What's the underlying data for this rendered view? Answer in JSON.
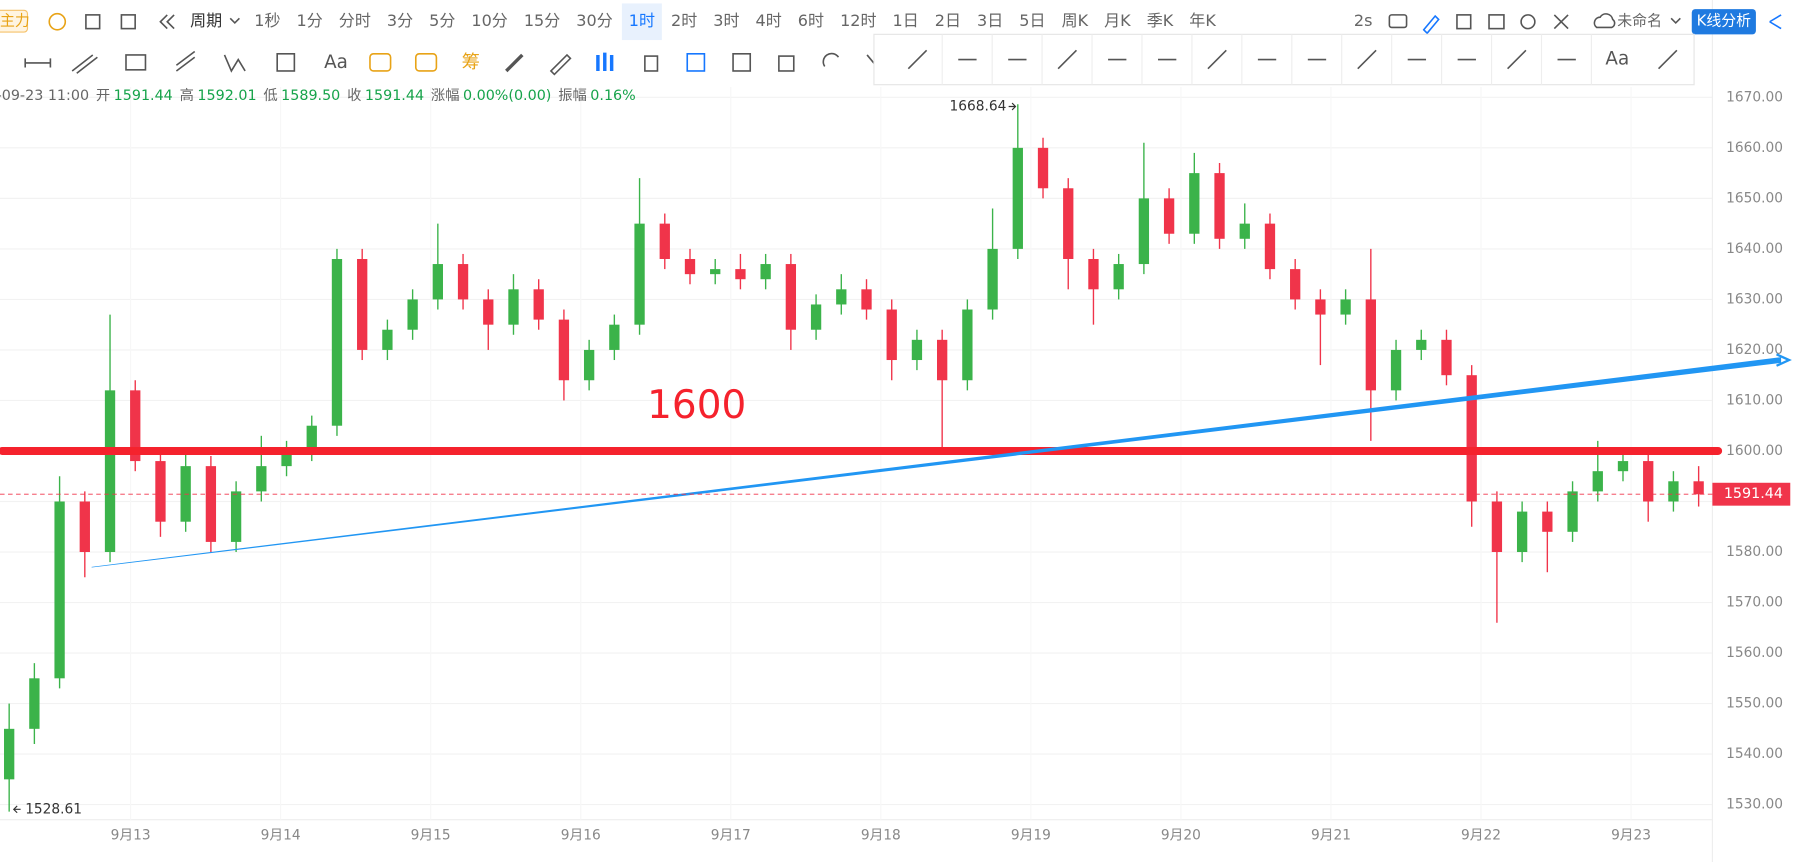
{
  "toolbar": {
    "left_tag": "主力",
    "period": "周期",
    "periods": [
      "1秒",
      "1分",
      "分时",
      "3分",
      "5分",
      "10分",
      "15分",
      "30分",
      "1时",
      "2时",
      "3时",
      "4时",
      "6时",
      "12时",
      "1日",
      "2日",
      "3日",
      "5日",
      "周K",
      "月K",
      "季K",
      "年K"
    ],
    "selected_period": "1时",
    "refresh": "2s",
    "layout_name": "未命名",
    "analysis_button": "K线分析",
    "row2_text": "Aa",
    "row2_chip": "筹",
    "draw_text": "Aa"
  },
  "info_bar": {
    "time": "-09-23 11:00",
    "open_label": "开",
    "open": "1591.44",
    "high_label": "高",
    "high": "1592.01",
    "low_label": "低",
    "low": "1589.50",
    "close_label": "收",
    "close": "1591.44",
    "change_label": "涨幅",
    "change": "0.00%(0.00)",
    "amplitude_label": "振幅",
    "amplitude": "0.16%"
  },
  "chart_data": {
    "type": "candlestick",
    "up_color": "#3bb34a",
    "down_color": "#f0344a",
    "x_labels": [
      "9月13",
      "9月14",
      "9月15",
      "9月16",
      "9月17",
      "9月18",
      "9月19",
      "9月20",
      "9月21",
      "9月22",
      "9月23"
    ],
    "ylim": [
      1520,
      1672
    ],
    "yticks": [
      {
        "value": 1530,
        "label": "1530.00"
      },
      {
        "value": 1540,
        "label": "1540.00"
      },
      {
        "value": 1550,
        "label": "1550.00"
      },
      {
        "value": 1560,
        "label": "1560.00"
      },
      {
        "value": 1570,
        "label": "1570.00"
      },
      {
        "value": 1580,
        "label": "1580.00"
      },
      {
        "value": 1590,
        "label": "1590.00"
      },
      {
        "value": 1600,
        "label": "1600.00"
      },
      {
        "value": 1610,
        "label": "1610.00"
      },
      {
        "value": 1620,
        "label": "1620.00"
      },
      {
        "value": 1630,
        "label": "1630.00"
      },
      {
        "value": 1640,
        "label": "1640.00"
      },
      {
        "value": 1650,
        "label": "1650.00"
      },
      {
        "value": 1660,
        "label": "1660.00"
      },
      {
        "value": 1670,
        "label": "1670.00"
      }
    ],
    "grid": true,
    "max_label": 1668.64,
    "min_label": 1528.61,
    "last_price": 1591.44,
    "horizontal_line": 1600,
    "horizontal_line_text": "1600",
    "horizontal_line_color": "#f5222d",
    "trend_line": {
      "start": 1577,
      "end": 1618,
      "color": "#2196f3"
    },
    "candles": [
      {
        "open": 1535,
        "high": 1550,
        "low": 1528.61,
        "close": 1545
      },
      {
        "open": 1545,
        "high": 1558,
        "low": 1542,
        "close": 1555
      },
      {
        "open": 1555,
        "high": 1595,
        "low": 1553,
        "close": 1590
      },
      {
        "open": 1590,
        "high": 1592,
        "low": 1575,
        "close": 1580
      },
      {
        "open": 1580,
        "high": 1627,
        "low": 1578,
        "close": 1612
      },
      {
        "open": 1612,
        "high": 1614,
        "low": 1596,
        "close": 1598
      },
      {
        "open": 1598,
        "high": 1600,
        "low": 1583,
        "close": 1586
      },
      {
        "open": 1586,
        "high": 1600,
        "low": 1584,
        "close": 1597
      },
      {
        "open": 1597,
        "high": 1599,
        "low": 1580,
        "close": 1582
      },
      {
        "open": 1582,
        "high": 1594,
        "low": 1580,
        "close": 1592
      },
      {
        "open": 1592,
        "high": 1603,
        "low": 1590,
        "close": 1597
      },
      {
        "open": 1597,
        "high": 1602,
        "low": 1595,
        "close": 1600
      },
      {
        "open": 1600,
        "high": 1607,
        "low": 1598,
        "close": 1605
      },
      {
        "open": 1605,
        "high": 1640,
        "low": 1603,
        "close": 1638
      },
      {
        "open": 1638,
        "high": 1640,
        "low": 1618,
        "close": 1620
      },
      {
        "open": 1620,
        "high": 1626,
        "low": 1618,
        "close": 1624
      },
      {
        "open": 1624,
        "high": 1632,
        "low": 1622,
        "close": 1630
      },
      {
        "open": 1630,
        "high": 1645,
        "low": 1628,
        "close": 1637
      },
      {
        "open": 1637,
        "high": 1639,
        "low": 1628,
        "close": 1630
      },
      {
        "open": 1630,
        "high": 1632,
        "low": 1620,
        "close": 1625
      },
      {
        "open": 1625,
        "high": 1635,
        "low": 1623,
        "close": 1632
      },
      {
        "open": 1632,
        "high": 1634,
        "low": 1624,
        "close": 1626
      },
      {
        "open": 1626,
        "high": 1628,
        "low": 1610,
        "close": 1614
      },
      {
        "open": 1614,
        "high": 1622,
        "low": 1612,
        "close": 1620
      },
      {
        "open": 1620,
        "high": 1627,
        "low": 1618,
        "close": 1625
      },
      {
        "open": 1625,
        "high": 1654,
        "low": 1623,
        "close": 1645
      },
      {
        "open": 1645,
        "high": 1647,
        "low": 1636,
        "close": 1638
      },
      {
        "open": 1638,
        "high": 1640,
        "low": 1633,
        "close": 1635
      },
      {
        "open": 1635,
        "high": 1638,
        "low": 1633,
        "close": 1636
      },
      {
        "open": 1636,
        "high": 1639,
        "low": 1632,
        "close": 1634
      },
      {
        "open": 1634,
        "high": 1639,
        "low": 1632,
        "close": 1637
      },
      {
        "open": 1637,
        "high": 1639,
        "low": 1620,
        "close": 1624
      },
      {
        "open": 1624,
        "high": 1631,
        "low": 1622,
        "close": 1629
      },
      {
        "open": 1629,
        "high": 1635,
        "low": 1627,
        "close": 1632
      },
      {
        "open": 1632,
        "high": 1634,
        "low": 1626,
        "close": 1628
      },
      {
        "open": 1628,
        "high": 1630,
        "low": 1614,
        "close": 1618
      },
      {
        "open": 1618,
        "high": 1624,
        "low": 1616,
        "close": 1622
      },
      {
        "open": 1622,
        "high": 1624,
        "low": 1600,
        "close": 1614
      },
      {
        "open": 1614,
        "high": 1630,
        "low": 1612,
        "close": 1628
      },
      {
        "open": 1628,
        "high": 1648,
        "low": 1626,
        "close": 1640
      },
      {
        "open": 1640,
        "high": 1668.64,
        "low": 1638,
        "close": 1660
      },
      {
        "open": 1660,
        "high": 1662,
        "low": 1650,
        "close": 1652
      },
      {
        "open": 1652,
        "high": 1654,
        "low": 1632,
        "close": 1638
      },
      {
        "open": 1638,
        "high": 1640,
        "low": 1625,
        "close": 1632
      },
      {
        "open": 1632,
        "high": 1639,
        "low": 1630,
        "close": 1637
      },
      {
        "open": 1637,
        "high": 1661,
        "low": 1635,
        "close": 1650
      },
      {
        "open": 1650,
        "high": 1652,
        "low": 1641,
        "close": 1643
      },
      {
        "open": 1643,
        "high": 1659,
        "low": 1641,
        "close": 1655
      },
      {
        "open": 1655,
        "high": 1657,
        "low": 1640,
        "close": 1642
      },
      {
        "open": 1642,
        "high": 1649,
        "low": 1640,
        "close": 1645
      },
      {
        "open": 1645,
        "high": 1647,
        "low": 1634,
        "close": 1636
      },
      {
        "open": 1636,
        "high": 1638,
        "low": 1628,
        "close": 1630
      },
      {
        "open": 1630,
        "high": 1632,
        "low": 1617,
        "close": 1627
      },
      {
        "open": 1627,
        "high": 1632,
        "low": 1625,
        "close": 1630
      },
      {
        "open": 1630,
        "high": 1640,
        "low": 1602,
        "close": 1612
      },
      {
        "open": 1612,
        "high": 1622,
        "low": 1610,
        "close": 1620
      },
      {
        "open": 1620,
        "high": 1624,
        "low": 1618,
        "close": 1622
      },
      {
        "open": 1622,
        "high": 1624,
        "low": 1613,
        "close": 1615
      },
      {
        "open": 1615,
        "high": 1617,
        "low": 1585,
        "close": 1590
      },
      {
        "open": 1590,
        "high": 1592,
        "low": 1566,
        "close": 1580
      },
      {
        "open": 1580,
        "high": 1590,
        "low": 1578,
        "close": 1588
      },
      {
        "open": 1588,
        "high": 1590,
        "low": 1576,
        "close": 1584
      },
      {
        "open": 1584,
        "high": 1594,
        "low": 1582,
        "close": 1592
      },
      {
        "open": 1592,
        "high": 1602,
        "low": 1590,
        "close": 1596
      },
      {
        "open": 1596,
        "high": 1600,
        "low": 1594,
        "close": 1598
      },
      {
        "open": 1598,
        "high": 1600,
        "low": 1586,
        "close": 1590
      },
      {
        "open": 1590,
        "high": 1596,
        "low": 1588,
        "close": 1594
      },
      {
        "open": 1594,
        "high": 1597,
        "low": 1589,
        "close": 1591.44
      }
    ]
  }
}
